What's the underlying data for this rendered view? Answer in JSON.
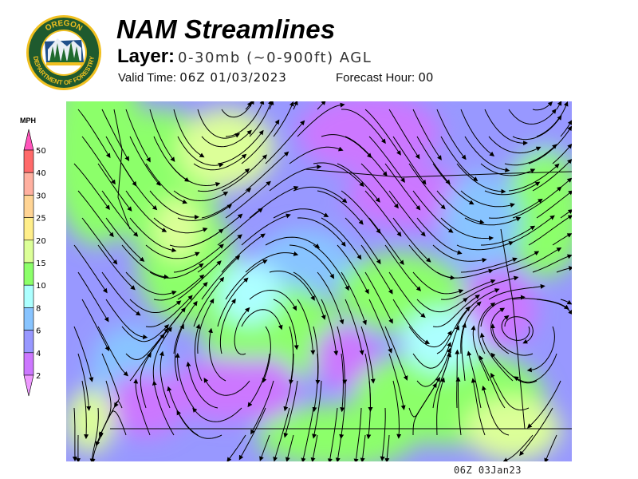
{
  "logo": {
    "top_text": "OREGON",
    "bottom_text": "DEPARTMENT OF FORESTRY"
  },
  "header": {
    "title": "NAM Streamlines",
    "layer_label": "Layer:",
    "layer_value": "0-30mb (~0-900ft) AGL",
    "valid_label": "Valid Time:",
    "valid_value": "06Z 01/03/2023",
    "forecast_label": "Forecast Hour:",
    "forecast_value": "00"
  },
  "legend": {
    "unit": "MPH",
    "ticks": [
      "50",
      "40",
      "30",
      "25",
      "20",
      "15",
      "10",
      "8",
      "6",
      "4",
      "2"
    ],
    "colors": [
      "#ff6a6a",
      "#ffb0a0",
      "#ffd494",
      "#ffee8a",
      "#dcff98",
      "#8cff6a",
      "#acffff",
      "#88c4ff",
      "#9898ff",
      "#cc77ff"
    ],
    "over_color": "#ff55bb",
    "under_color": "#ee99ff"
  },
  "footer": {
    "timestamp": "06Z 03Jan23"
  }
}
